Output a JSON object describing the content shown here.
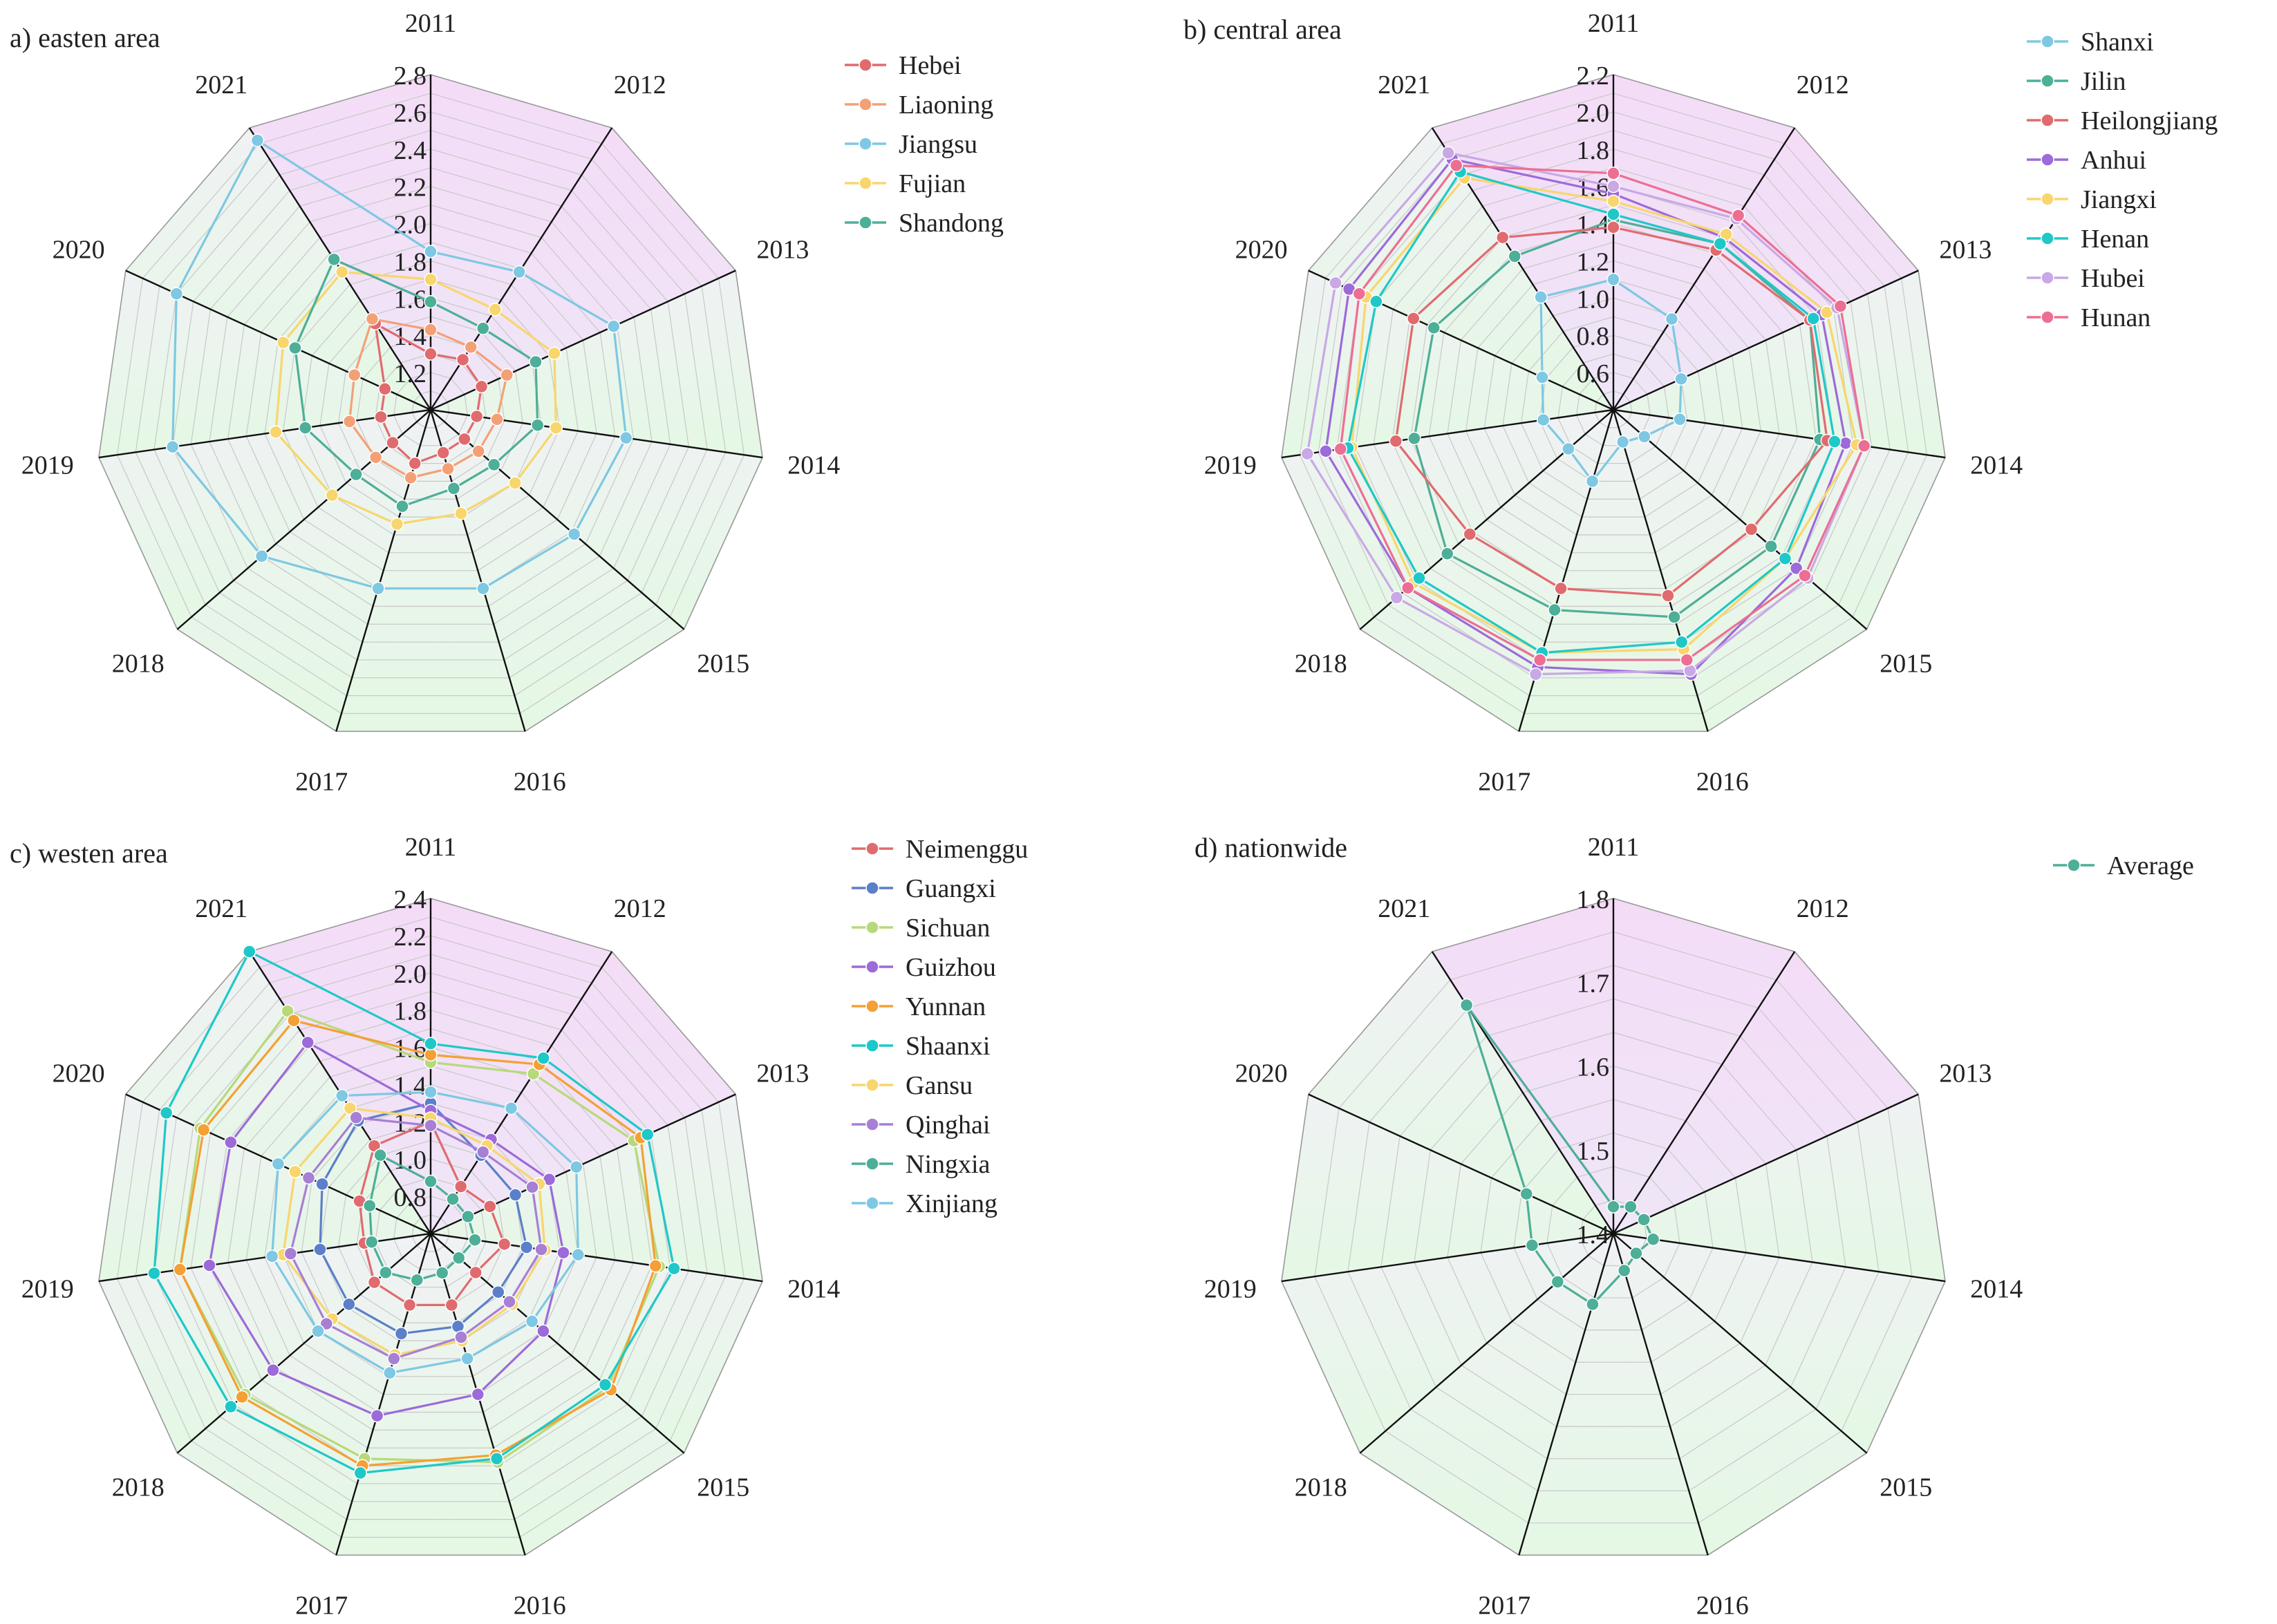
{
  "chart_data": [
    {
      "type": "radar",
      "panel_label": "a) easten area",
      "categories": [
        "2011",
        "2012",
        "2013",
        "2014",
        "2015",
        "2016",
        "2017",
        "2018",
        "2019",
        "2020",
        "2021"
      ],
      "rmin": 1.0,
      "rmax": 2.8,
      "ticks": [
        "1.2",
        "1.4",
        "1.6",
        "1.8",
        "2.0",
        "2.2",
        "2.4",
        "2.6",
        "2.8"
      ],
      "series": [
        {
          "name": "Hebei",
          "color": "#e06b6e",
          "values": [
            1.3,
            1.32,
            1.3,
            1.25,
            1.24,
            1.24,
            1.3,
            1.27,
            1.27,
            1.27,
            1.55
          ]
        },
        {
          "name": "Liaoning",
          "color": "#f4a077",
          "values": [
            1.43,
            1.4,
            1.45,
            1.36,
            1.34,
            1.33,
            1.38,
            1.39,
            1.44,
            1.45,
            1.58
          ]
        },
        {
          "name": "Jiangsu",
          "color": "#7ec8e3",
          "values": [
            1.85,
            1.88,
            2.08,
            2.06,
            2.02,
            2.0,
            2.0,
            2.2,
            2.4,
            2.5,
            2.72
          ]
        },
        {
          "name": "Fujian",
          "color": "#f8d66d",
          "values": [
            1.7,
            1.64,
            1.73,
            1.68,
            1.6,
            1.58,
            1.64,
            1.7,
            1.84,
            1.87,
            1.88
          ]
        },
        {
          "name": "Shandong",
          "color": "#4daf97",
          "values": [
            1.58,
            1.52,
            1.62,
            1.58,
            1.45,
            1.44,
            1.54,
            1.53,
            1.68,
            1.8,
            1.96
          ]
        }
      ]
    },
    {
      "type": "radar",
      "panel_label": "b) central area",
      "categories": [
        "2011",
        "2012",
        "2013",
        "2014",
        "2015",
        "2016",
        "2017",
        "2018",
        "2019",
        "2020",
        "2021"
      ],
      "rmin": 0.4,
      "rmax": 2.2,
      "ticks": [
        "0.6",
        "0.8",
        "1.0",
        "1.2",
        "1.4",
        "1.6",
        "1.8",
        "2.0",
        "2.2"
      ],
      "series": [
        {
          "name": "Shanxi",
          "color": "#7ec8e3",
          "values": [
            1.1,
            0.98,
            0.8,
            0.76,
            0.62,
            0.58,
            0.8,
            0.72,
            0.78,
            0.82,
            1.12
          ]
        },
        {
          "name": "Jilin",
          "color": "#4daf97",
          "values": [
            1.42,
            1.46,
            1.56,
            1.52,
            1.52,
            1.56,
            1.52,
            1.58,
            1.48,
            1.46,
            1.38
          ]
        },
        {
          "name": "Heilongjiang",
          "color": "#e06b6e",
          "values": [
            1.38,
            1.42,
            1.56,
            1.56,
            1.38,
            1.44,
            1.4,
            1.42,
            1.58,
            1.58,
            1.5
          ]
        },
        {
          "name": "Anhui",
          "color": "#9d6ad9",
          "values": [
            1.56,
            1.5,
            1.63,
            1.66,
            1.7,
            1.88,
            1.84,
            1.86,
            1.96,
            1.96,
            2.0
          ]
        },
        {
          "name": "Jiangxi",
          "color": "#f8d66d",
          "values": [
            1.52,
            1.52,
            1.66,
            1.72,
            1.62,
            1.74,
            1.76,
            1.82,
            1.82,
            1.86,
            1.88
          ]
        },
        {
          "name": "Henan",
          "color": "#1fc8c8",
          "values": [
            1.45,
            1.46,
            1.58,
            1.6,
            1.62,
            1.7,
            1.76,
            1.78,
            1.84,
            1.8,
            1.92
          ]
        },
        {
          "name": "Hubei",
          "color": "#c9a8e6",
          "values": [
            1.6,
            1.62,
            1.72,
            1.76,
            1.78,
            1.86,
            1.88,
            1.94,
            2.06,
            2.04,
            2.04
          ]
        },
        {
          "name": "Hunan",
          "color": "#ec6f93",
          "values": [
            1.67,
            1.64,
            1.74,
            1.76,
            1.76,
            1.8,
            1.8,
            1.86,
            1.88,
            1.9,
            1.96
          ]
        }
      ]
    },
    {
      "type": "radar",
      "panel_label": "c) westen area",
      "categories": [
        "2011",
        "2012",
        "2013",
        "2014",
        "2015",
        "2016",
        "2017",
        "2018",
        "2019",
        "2020",
        "2021"
      ],
      "rmin": 0.6,
      "rmax": 2.4,
      "ticks": [
        "0.8",
        "1.0",
        "1.2",
        "1.4",
        "1.6",
        "1.8",
        "2.0",
        "2.2",
        "2.4"
      ],
      "series": [
        {
          "name": "Neimenggu",
          "color": "#e06b6e",
          "values": [
            1.2,
            0.9,
            0.95,
            1.0,
            0.92,
            1.0,
            1.0,
            1.0,
            0.96,
            1.02,
            1.16
          ]
        },
        {
          "name": "Guangxi",
          "color": "#5b7fc9",
          "values": [
            1.3,
            1.1,
            1.1,
            1.12,
            1.08,
            1.12,
            1.16,
            1.18,
            1.2,
            1.24,
            1.32
          ]
        },
        {
          "name": "Sichuan",
          "color": "#b8d97a",
          "values": [
            1.52,
            1.62,
            1.8,
            1.84,
            1.86,
            1.88,
            1.86,
            1.92,
            1.96,
            1.96,
            2.02
          ]
        },
        {
          "name": "Guizhou",
          "color": "#9d6ad9",
          "values": [
            1.26,
            1.2,
            1.3,
            1.32,
            1.4,
            1.5,
            1.62,
            1.72,
            1.8,
            1.78,
            1.82
          ]
        },
        {
          "name": "Yunnan",
          "color": "#f4a035",
          "values": [
            1.56,
            1.68,
            1.84,
            1.82,
            1.88,
            1.84,
            1.9,
            1.94,
            1.96,
            1.94,
            1.96
          ]
        },
        {
          "name": "Shaanxi",
          "color": "#1fc8c8",
          "values": [
            1.62,
            1.72,
            1.88,
            1.92,
            1.84,
            1.86,
            1.94,
            2.02,
            2.1,
            2.16,
            2.4
          ]
        },
        {
          "name": "Gansu",
          "color": "#f8d66d",
          "values": [
            1.22,
            1.16,
            1.24,
            1.22,
            1.18,
            1.2,
            1.28,
            1.3,
            1.4,
            1.4,
            1.4
          ]
        },
        {
          "name": "Qinghai",
          "color": "#a77fd4",
          "values": [
            1.18,
            1.12,
            1.2,
            1.2,
            1.16,
            1.18,
            1.3,
            1.34,
            1.36,
            1.32,
            1.34
          ]
        },
        {
          "name": "Ningxia",
          "color": "#4daf97",
          "values": [
            0.88,
            0.82,
            0.82,
            0.84,
            0.8,
            0.82,
            0.86,
            0.92,
            0.92,
            0.96,
            1.1
          ]
        },
        {
          "name": "Xinjiang",
          "color": "#7ec8e3",
          "values": [
            1.36,
            1.4,
            1.46,
            1.4,
            1.32,
            1.3,
            1.38,
            1.4,
            1.46,
            1.5,
            1.48
          ]
        }
      ]
    },
    {
      "type": "radar",
      "panel_label": "d) nationwide",
      "categories": [
        "2011",
        "2012",
        "2013",
        "2014",
        "2015",
        "2016",
        "2017",
        "2018",
        "2019",
        "2020",
        "2021"
      ],
      "rmin": 1.4,
      "rmax": 1.8,
      "ticks": [
        "1.4",
        "1.5",
        "1.6",
        "1.7",
        "1.8"
      ],
      "series": [
        {
          "name": "Average",
          "color": "#4daf97",
          "values": [
            1.432,
            1.438,
            1.44,
            1.448,
            1.436,
            1.446,
            1.488,
            1.488,
            1.498,
            1.514,
            1.724
          ]
        }
      ]
    }
  ]
}
